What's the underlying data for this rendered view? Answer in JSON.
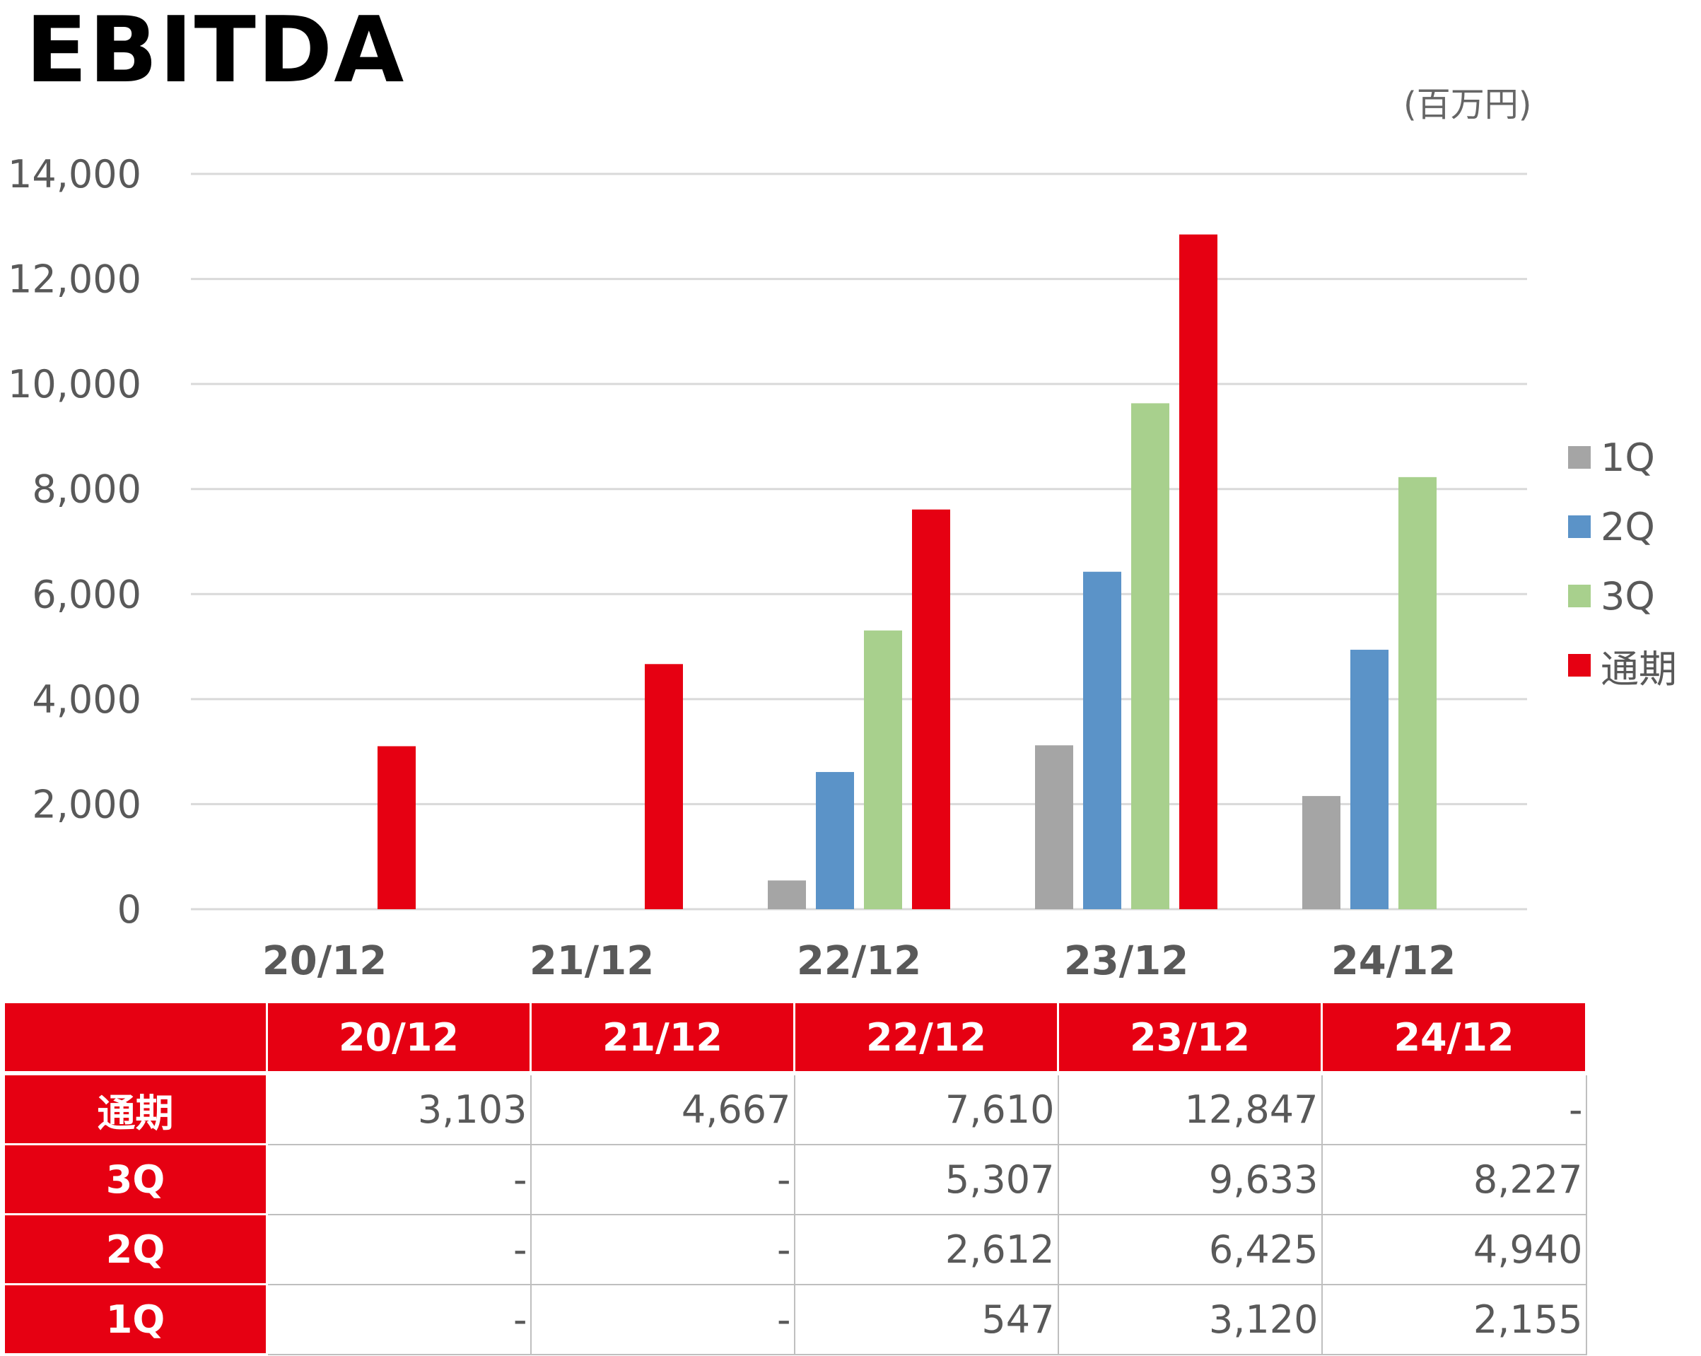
{
  "title": "EBITDA",
  "unit_label": "(百万円)",
  "colors": {
    "1Q": "#A5A5A5",
    "2Q": "#5B93C8",
    "3Q": "#A8D08D",
    "通期": "#E60012",
    "grid": "#D9D9D9",
    "tick_text": "#595959",
    "category_text": "#595959",
    "header_bg": "#E60012"
  },
  "chart_data": {
    "type": "bar",
    "categories": [
      "20/12",
      "21/12",
      "22/12",
      "23/12",
      "24/12"
    ],
    "series": [
      {
        "name": "1Q",
        "values": [
          null,
          null,
          547,
          3120,
          2155
        ]
      },
      {
        "name": "2Q",
        "values": [
          null,
          null,
          2612,
          6425,
          4940
        ]
      },
      {
        "name": "3Q",
        "values": [
          null,
          null,
          5307,
          9633,
          8227
        ]
      },
      {
        "name": "通期",
        "values": [
          3103,
          4667,
          7610,
          12847,
          null
        ]
      }
    ],
    "ylim": [
      0,
      14000
    ],
    "yticks": [
      0,
      2000,
      4000,
      6000,
      8000,
      10000,
      12000,
      14000
    ],
    "ytick_labels": [
      "0",
      "2,000",
      "4,000",
      "6,000",
      "8,000",
      "10,000",
      "12,000",
      "14,000"
    ],
    "grid": true,
    "legend_position": "right"
  },
  "table": {
    "headers": [
      "",
      "20/12",
      "21/12",
      "22/12",
      "23/12",
      "24/12"
    ],
    "rows": [
      {
        "label": "通期",
        "values": [
          "3,103",
          "4,667",
          "7,610",
          "12,847",
          "-"
        ]
      },
      {
        "label": "3Q",
        "values": [
          "-",
          "-",
          "5,307",
          "9,633",
          "8,227"
        ]
      },
      {
        "label": "2Q",
        "values": [
          "-",
          "-",
          "2,612",
          "6,425",
          "4,940"
        ]
      },
      {
        "label": "1Q",
        "values": [
          "-",
          "-",
          "547",
          "3,120",
          "2,155"
        ]
      }
    ]
  }
}
